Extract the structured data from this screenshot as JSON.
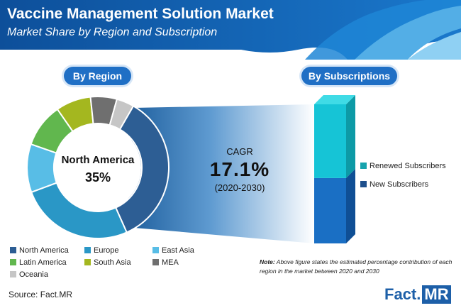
{
  "header": {
    "title": "Vaccine Management Solution Market",
    "subtitle": "Market Share by Region and Subscription"
  },
  "badges": {
    "region": "By Region",
    "subscriptions": "By Subscriptions"
  },
  "center": {
    "name": "North America",
    "value": "35%"
  },
  "cagr": {
    "label": "CAGR",
    "value": "17.1%",
    "period": "(2020-2030)"
  },
  "chart_data": [
    {
      "type": "pie",
      "title": "By Region",
      "categories": [
        "North America",
        "Europe",
        "East Asia",
        "Latin America",
        "South Asia",
        "MEA",
        "Oceania"
      ],
      "values": [
        35,
        26,
        11,
        10,
        8,
        6,
        4
      ],
      "colors": [
        "#2d5e94",
        "#2a97c6",
        "#58bde6",
        "#61b74e",
        "#a4b71f",
        "#6f6f6f",
        "#c6c6c6"
      ],
      "center_label": "North America 35%"
    },
    {
      "type": "bar",
      "title": "By Subscriptions",
      "categories": [
        "By Subscriptions"
      ],
      "series": [
        {
          "name": "New Subscribers",
          "values": [
            47
          ],
          "color": "#1a6fc4"
        },
        {
          "name": "Renewed Subscribers",
          "values": [
            53
          ],
          "color": "#16c4d6"
        }
      ],
      "stacked": true
    }
  ],
  "legend": [
    {
      "label": "North America",
      "color": "#2d5e94"
    },
    {
      "label": "Europe",
      "color": "#2a97c6"
    },
    {
      "label": "East Asia",
      "color": "#58bde6"
    },
    {
      "label": "Latin America",
      "color": "#61b74e"
    },
    {
      "label": "South Asia",
      "color": "#a4b71f"
    },
    {
      "label": "MEA",
      "color": "#6f6f6f"
    },
    {
      "label": "Oceania",
      "color": "#c6c6c6"
    }
  ],
  "sub_legend": [
    {
      "label": "Renewed Subscribers",
      "color": "#16a3ad"
    },
    {
      "label": "New Subscribers",
      "color": "#1d4f8c"
    }
  ],
  "note": {
    "prefix": "Note:",
    "text": "Above figure states the estimated percentage contribution of each region in the market between 2020 and 2030"
  },
  "footer": {
    "source": "Source: Fact.MR",
    "logo_a": "Fact",
    "logo_b": "MR"
  }
}
